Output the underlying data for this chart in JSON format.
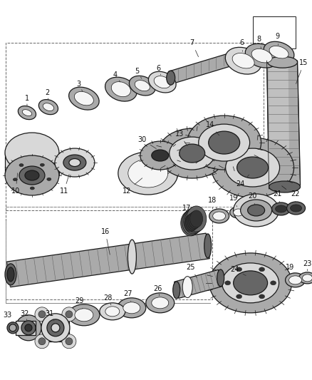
{
  "bg_color": "#ffffff",
  "fig_width": 4.38,
  "fig_height": 5.33,
  "dpi": 100,
  "ec": "#1a1a1a",
  "fc_light": "#d8d8d8",
  "fc_mid": "#aaaaaa",
  "fc_dark": "#666666",
  "fc_vdark": "#333333",
  "fc_white": "#f5f5f5",
  "lw_main": 0.9,
  "lw_thin": 0.5,
  "label_fontsize": 7.0,
  "label_color": "#111111"
}
